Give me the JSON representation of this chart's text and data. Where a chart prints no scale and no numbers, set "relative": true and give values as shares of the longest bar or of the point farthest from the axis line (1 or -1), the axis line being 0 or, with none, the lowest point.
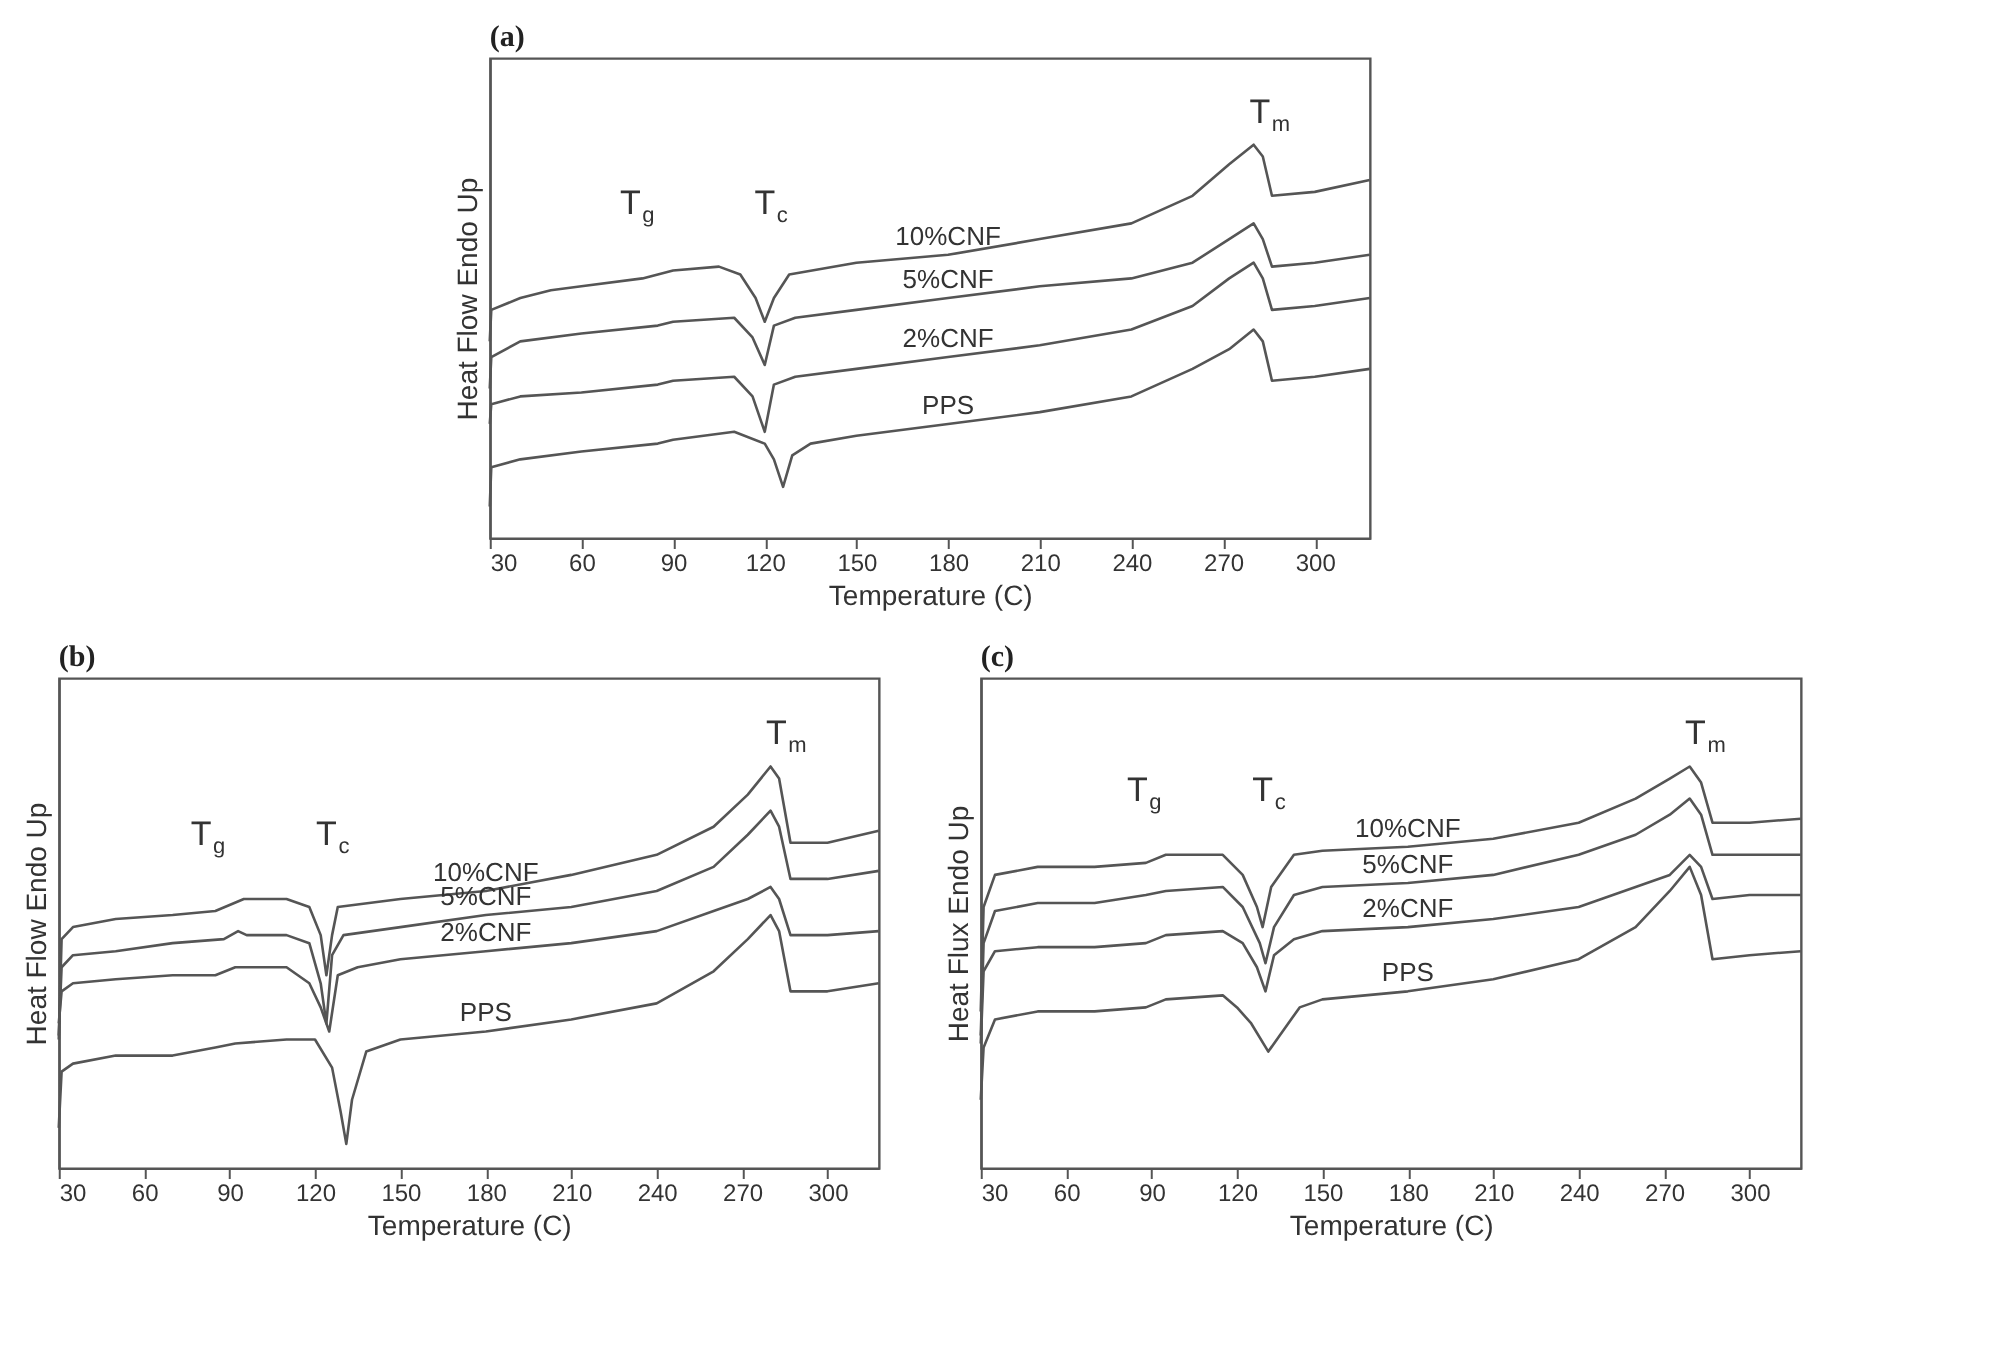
{
  "chart_data": [
    {
      "type": "line",
      "title": "(a)",
      "xlabel": "Temperature (C)",
      "ylabel": "Heat Flow Endo Up",
      "relative": true,
      "legend": false,
      "grid": false,
      "xlim": [
        30,
        318
      ],
      "xticks": [
        30,
        60,
        90,
        120,
        150,
        180,
        210,
        240,
        270,
        300
      ],
      "annotations": [
        "T$_{g}$",
        "T$_{c}$",
        "T$_{m}$"
      ],
      "series": [
        {
          "name": "10%CNF",
          "color": "#555555",
          "x": [
            30,
            30.5,
            40,
            50,
            60,
            80,
            90,
            105,
            112,
            117,
            120,
            123,
            128,
            150,
            180,
            210,
            240,
            260,
            272,
            280,
            283,
            286,
            300,
            318
          ],
          "values": [
            0.5,
            0.58,
            0.61,
            0.63,
            0.64,
            0.66,
            0.68,
            0.69,
            0.67,
            0.61,
            0.55,
            0.61,
            0.67,
            0.7,
            0.72,
            0.76,
            0.8,
            0.87,
            0.95,
            1.0,
            0.97,
            0.87,
            0.88,
            0.91
          ]
        },
        {
          "name": "5%CNF",
          "color": "#555555",
          "x": [
            30,
            30.5,
            40,
            60,
            85,
            90,
            110,
            116,
            120,
            123,
            130,
            150,
            180,
            210,
            240,
            260,
            272,
            280,
            283,
            286,
            300,
            318
          ],
          "values": [
            0.38,
            0.46,
            0.5,
            0.52,
            0.54,
            0.55,
            0.56,
            0.51,
            0.44,
            0.54,
            0.56,
            0.58,
            0.61,
            0.64,
            0.66,
            0.7,
            0.76,
            0.8,
            0.76,
            0.69,
            0.7,
            0.72
          ]
        },
        {
          "name": "2%CNF",
          "color": "#555555",
          "x": [
            30,
            30.5,
            40,
            60,
            85,
            90,
            110,
            116,
            120,
            123,
            130,
            150,
            180,
            210,
            240,
            260,
            272,
            280,
            283,
            286,
            300,
            318
          ],
          "values": [
            0.29,
            0.34,
            0.36,
            0.37,
            0.39,
            0.4,
            0.41,
            0.36,
            0.27,
            0.39,
            0.41,
            0.43,
            0.46,
            0.49,
            0.53,
            0.59,
            0.66,
            0.7,
            0.66,
            0.58,
            0.59,
            0.61
          ]
        },
        {
          "name": "PPS",
          "color": "#555555",
          "x": [
            30,
            30.5,
            40,
            60,
            85,
            90,
            110,
            120,
            123,
            126,
            129,
            135,
            150,
            180,
            210,
            240,
            260,
            272,
            280,
            283,
            286,
            300,
            318
          ],
          "values": [
            0.08,
            0.18,
            0.2,
            0.22,
            0.24,
            0.25,
            0.27,
            0.24,
            0.2,
            0.13,
            0.21,
            0.24,
            0.26,
            0.29,
            0.32,
            0.36,
            0.43,
            0.48,
            0.53,
            0.5,
            0.4,
            0.41,
            0.43
          ]
        }
      ]
    },
    {
      "type": "line",
      "title": "(b)",
      "xlabel": "Temperature (C)",
      "ylabel": "Heat Flow Endo Up",
      "relative": true,
      "legend": false,
      "grid": false,
      "xlim": [
        30,
        318
      ],
      "xticks": [
        30,
        60,
        90,
        120,
        150,
        180,
        210,
        240,
        270,
        300
      ],
      "annotations": [
        "T$_{g}$",
        "T$_{c}$",
        "T$_{m}$"
      ],
      "series": [
        {
          "name": "10%CNF",
          "color": "#555555",
          "x": [
            30,
            31,
            35,
            50,
            70,
            85,
            95,
            110,
            118,
            122,
            124,
            126,
            128,
            150,
            180,
            210,
            240,
            260,
            272,
            280,
            283,
            287,
            300,
            318
          ],
          "values": [
            0.32,
            0.57,
            0.6,
            0.62,
            0.63,
            0.64,
            0.67,
            0.67,
            0.65,
            0.58,
            0.48,
            0.58,
            0.65,
            0.67,
            0.69,
            0.73,
            0.78,
            0.85,
            0.93,
            1.0,
            0.97,
            0.81,
            0.81,
            0.84
          ]
        },
        {
          "name": "5%CNF",
          "color": "#555555",
          "x": [
            30,
            31,
            35,
            50,
            70,
            88,
            93,
            96,
            110,
            118,
            122,
            124,
            126,
            130,
            150,
            180,
            210,
            240,
            260,
            272,
            280,
            283,
            287,
            300,
            318
          ],
          "values": [
            0.33,
            0.5,
            0.53,
            0.54,
            0.56,
            0.57,
            0.59,
            0.58,
            0.58,
            0.56,
            0.46,
            0.36,
            0.53,
            0.58,
            0.6,
            0.63,
            0.65,
            0.69,
            0.75,
            0.83,
            0.89,
            0.85,
            0.72,
            0.72,
            0.74
          ]
        },
        {
          "name": "2%CNF",
          "color": "#555555",
          "x": [
            30,
            31,
            35,
            50,
            70,
            85,
            92,
            110,
            118,
            122,
            125,
            128,
            135,
            150,
            180,
            210,
            240,
            260,
            272,
            280,
            283,
            287,
            300,
            318
          ],
          "values": [
            0.36,
            0.44,
            0.46,
            0.47,
            0.48,
            0.48,
            0.5,
            0.5,
            0.46,
            0.4,
            0.34,
            0.48,
            0.5,
            0.52,
            0.54,
            0.56,
            0.59,
            0.64,
            0.67,
            0.7,
            0.67,
            0.58,
            0.58,
            0.59
          ]
        },
        {
          "name": "PPS",
          "color": "#555555",
          "x": [
            30,
            31,
            35,
            50,
            70,
            85,
            92,
            110,
            120,
            126,
            129,
            131,
            133,
            138,
            150,
            180,
            210,
            240,
            260,
            272,
            280,
            283,
            287,
            300,
            318
          ],
          "values": [
            0.1,
            0.24,
            0.26,
            0.28,
            0.28,
            0.3,
            0.31,
            0.32,
            0.32,
            0.25,
            0.14,
            0.06,
            0.17,
            0.29,
            0.32,
            0.34,
            0.37,
            0.41,
            0.49,
            0.57,
            0.63,
            0.59,
            0.44,
            0.44,
            0.46
          ]
        }
      ]
    },
    {
      "type": "line",
      "title": "(c)",
      "xlabel": "Temperature (C)",
      "ylabel": "Heat Flux Endo Up",
      "relative": true,
      "legend": false,
      "grid": false,
      "xlim": [
        30,
        318
      ],
      "xticks": [
        30,
        60,
        90,
        120,
        150,
        180,
        210,
        240,
        270,
        300
      ],
      "annotations": [
        "T$_{g}$",
        "T$_{c}$",
        "T$_{m}$"
      ],
      "series": [
        {
          "name": "10%CNF",
          "color": "#555555",
          "x": [
            30,
            31,
            35,
            50,
            70,
            88,
            95,
            115,
            122,
            127,
            129,
            132,
            140,
            150,
            180,
            210,
            240,
            260,
            272,
            279,
            283,
            287,
            300,
            318
          ],
          "values": [
            0.39,
            0.65,
            0.73,
            0.75,
            0.75,
            0.76,
            0.78,
            0.78,
            0.73,
            0.65,
            0.6,
            0.7,
            0.78,
            0.79,
            0.8,
            0.82,
            0.86,
            0.92,
            0.97,
            1.0,
            0.96,
            0.86,
            0.86,
            0.87
          ]
        },
        {
          "name": "5%CNF",
          "color": "#555555",
          "x": [
            30,
            31,
            35,
            50,
            70,
            88,
            95,
            115,
            122,
            128,
            130,
            133,
            140,
            150,
            180,
            210,
            240,
            260,
            272,
            279,
            283,
            287,
            300,
            318
          ],
          "values": [
            0.33,
            0.56,
            0.64,
            0.66,
            0.66,
            0.68,
            0.69,
            0.7,
            0.65,
            0.56,
            0.51,
            0.6,
            0.68,
            0.7,
            0.71,
            0.73,
            0.78,
            0.83,
            0.88,
            0.92,
            0.88,
            0.78,
            0.78,
            0.78
          ]
        },
        {
          "name": "2%CNF",
          "color": "#555555",
          "x": [
            30,
            31,
            35,
            50,
            70,
            88,
            95,
            115,
            122,
            127,
            130,
            133,
            140,
            150,
            180,
            210,
            240,
            260,
            272,
            279,
            283,
            287,
            300,
            318
          ],
          "values": [
            0.31,
            0.49,
            0.54,
            0.55,
            0.55,
            0.56,
            0.58,
            0.59,
            0.56,
            0.5,
            0.44,
            0.53,
            0.57,
            0.59,
            0.6,
            0.62,
            0.65,
            0.7,
            0.73,
            0.78,
            0.75,
            0.67,
            0.68,
            0.68
          ]
        },
        {
          "name": "PPS",
          "color": "#555555",
          "x": [
            30,
            31,
            35,
            50,
            70,
            88,
            95,
            115,
            120,
            125,
            131,
            135,
            142,
            150,
            180,
            210,
            240,
            260,
            272,
            279,
            283,
            287,
            300,
            318
          ],
          "values": [
            0.17,
            0.3,
            0.37,
            0.39,
            0.39,
            0.4,
            0.42,
            0.43,
            0.4,
            0.36,
            0.29,
            0.33,
            0.4,
            0.42,
            0.44,
            0.47,
            0.52,
            0.6,
            0.69,
            0.75,
            0.68,
            0.52,
            0.53,
            0.54
          ]
        }
      ]
    }
  ]
}
